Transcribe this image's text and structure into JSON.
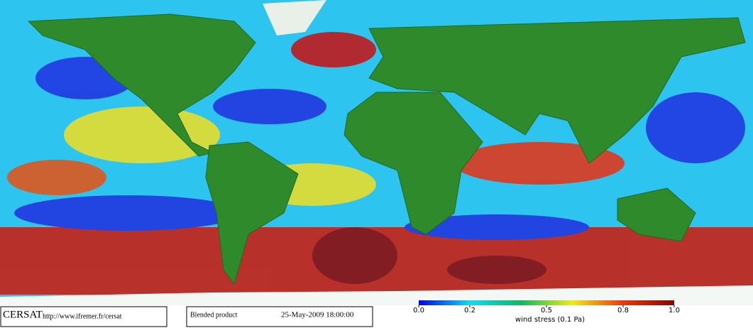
{
  "footer": {
    "organization": "CERSAT",
    "url": "http://www.ifremer.fr/cersat",
    "product": "Blended product",
    "datetime": "25-May-2009 18:00:00"
  },
  "colorbar": {
    "label": "wind stress (0.1 Pa)",
    "lim": [
      0,
      1
    ],
    "ticks": [
      {
        "value": 0,
        "label": "0.0"
      },
      {
        "value": 0.2,
        "label": "0.2"
      },
      {
        "value": 0.5,
        "label": "0.5"
      },
      {
        "value": 0.8,
        "label": "0.8"
      },
      {
        "value": 1,
        "label": "1.0"
      }
    ],
    "colors": [
      "#0000ff",
      "#00e0ff",
      "#00c060",
      "#f0f000",
      "#ff3000",
      "#900000"
    ]
  }
}
